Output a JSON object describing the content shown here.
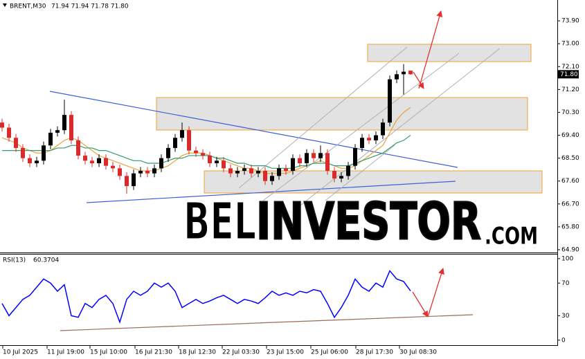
{
  "chart_data": [
    {
      "type": "candlestick",
      "symbol": "BRENT,M30",
      "ohlc_label": "71.94 71.94 71.78 71.80",
      "price_label": {
        "value": 71.8,
        "label": "71.80"
      },
      "up_color": "#000000",
      "down_color": "#d92b2b",
      "open": [
        69.9,
        69.7,
        69.3,
        68.9,
        68.5,
        68.3,
        68.4,
        69.0,
        69.5,
        69.6,
        70.2,
        69.2,
        68.6,
        68.4,
        68.3,
        68.5,
        68.2,
        68.1,
        67.8,
        67.4,
        67.9,
        68.0,
        67.9,
        68.1,
        68.5,
        68.9,
        69.3,
        69.6,
        68.8,
        68.7,
        68.6,
        68.3,
        68.4,
        68.1,
        67.9,
        68.0,
        68.1,
        67.9,
        68.0,
        67.6,
        67.8,
        68.1,
        68.0,
        68.5,
        68.3,
        68.7,
        68.5,
        68.7,
        68.0,
        67.7,
        67.8,
        68.2,
        68.9,
        69.3,
        69.2,
        69.4,
        69.9,
        71.6,
        71.8,
        71.94
      ],
      "high": [
        70.05,
        69.85,
        69.45,
        69.05,
        68.65,
        68.55,
        69.15,
        69.65,
        69.75,
        70.8,
        70.35,
        69.35,
        68.75,
        68.55,
        68.65,
        68.65,
        68.35,
        68.25,
        67.95,
        68.05,
        68.15,
        68.15,
        68.25,
        68.65,
        69.05,
        69.45,
        69.9,
        69.75,
        68.95,
        68.85,
        68.75,
        68.55,
        68.55,
        68.25,
        68.15,
        68.25,
        68.25,
        68.15,
        68.15,
        67.95,
        68.25,
        68.25,
        68.65,
        68.65,
        68.85,
        68.85,
        69.0,
        68.85,
        68.15,
        67.95,
        68.35,
        69.05,
        69.45,
        69.45,
        69.55,
        70.05,
        71.75,
        71.95,
        72.2,
        71.94
      ],
      "low": [
        69.55,
        69.15,
        68.75,
        68.35,
        68.15,
        68.15,
        68.25,
        68.85,
        69.35,
        69.45,
        69.05,
        68.45,
        68.25,
        68.15,
        68.15,
        68.05,
        67.95,
        67.65,
        67.1,
        67.25,
        67.75,
        67.75,
        67.75,
        67.95,
        68.35,
        68.75,
        69.15,
        68.65,
        68.55,
        68.45,
        68.15,
        68.15,
        67.95,
        67.75,
        67.75,
        67.85,
        67.75,
        67.75,
        67.45,
        67.45,
        67.65,
        67.85,
        67.85,
        68.15,
        68.15,
        68.35,
        68.35,
        67.85,
        67.55,
        67.55,
        67.65,
        68.05,
        68.75,
        69.05,
        69.05,
        69.25,
        69.75,
        71.45,
        71.0,
        71.78
      ],
      "close": [
        69.7,
        69.3,
        68.9,
        68.5,
        68.3,
        68.4,
        69.0,
        69.5,
        69.6,
        70.2,
        69.2,
        68.6,
        68.4,
        68.3,
        68.5,
        68.2,
        68.1,
        67.8,
        67.4,
        67.9,
        68.0,
        67.9,
        68.1,
        68.5,
        68.9,
        69.3,
        69.6,
        68.8,
        68.7,
        68.6,
        68.3,
        68.4,
        68.1,
        67.9,
        68.0,
        68.1,
        67.9,
        68.0,
        67.6,
        67.8,
        68.1,
        68.0,
        68.5,
        68.3,
        68.7,
        68.5,
        68.7,
        68.0,
        67.7,
        67.8,
        68.2,
        68.9,
        69.3,
        69.2,
        69.4,
        69.9,
        71.6,
        71.8,
        71.9,
        71.8
      ],
      "series": [
        {
          "color": "#e8a33a",
          "values": [
            69.3,
            69.2,
            69.1,
            68.9,
            68.8,
            68.7,
            68.7,
            68.8,
            69.0,
            69.2,
            69.3,
            69.2,
            69.0,
            68.8,
            68.6,
            68.5,
            68.4,
            68.3,
            68.2,
            68.1,
            68.0,
            68.0,
            68.0,
            68.1,
            68.2,
            68.4,
            68.6,
            68.7,
            68.7,
            68.7,
            68.6,
            68.5,
            68.4,
            68.3,
            68.2,
            68.1,
            68.1,
            68.0,
            67.9,
            67.9,
            67.9,
            67.9,
            68.0,
            68.1,
            68.2,
            68.3,
            68.4,
            68.3,
            68.2,
            68.1,
            68.1,
            68.2,
            68.4,
            68.6,
            68.8,
            69.0,
            69.5,
            70.0,
            70.3,
            70.5
          ]
        },
        {
          "color": "#2e9e6a",
          "values": [
            68.8,
            68.8,
            68.8,
            68.8,
            68.8,
            68.8,
            68.8,
            68.8,
            68.9,
            68.9,
            69.0,
            69.0,
            68.9,
            68.9,
            68.8,
            68.8,
            68.7,
            68.6,
            68.5,
            68.4,
            68.4,
            68.3,
            68.3,
            68.3,
            68.4,
            68.5,
            68.5,
            68.6,
            68.6,
            68.6,
            68.6,
            68.5,
            68.5,
            68.4,
            68.3,
            68.3,
            68.2,
            68.2,
            68.2,
            68.1,
            68.1,
            68.1,
            68.1,
            68.2,
            68.2,
            68.3,
            68.3,
            68.3,
            68.2,
            68.2,
            68.2,
            68.3,
            68.4,
            68.5,
            68.6,
            68.7,
            68.9,
            69.1,
            69.2,
            69.4
          ]
        }
      ],
      "xlim": [
        -0.3,
        80.2
      ],
      "xticks": [
        {
          "value": 0.1,
          "label": "10 Jul 2025"
        },
        {
          "value": 6.5,
          "label": "11 Jul 19:00"
        },
        {
          "value": 12.7,
          "label": "15 Jul 10:00"
        },
        {
          "value": 19.2,
          "label": "16 Jul 21:30"
        },
        {
          "value": 25.5,
          "label": "18 Jul 12:30"
        },
        {
          "value": 31.8,
          "label": "22 Jul 03:30"
        },
        {
          "value": 38.2,
          "label": "23 Jul 15:00"
        },
        {
          "value": 44.6,
          "label": "25 Jul 06:00"
        },
        {
          "value": 51.1,
          "label": "28 Jul 17:30"
        },
        {
          "value": 57.4,
          "label": "30 Jul 08:30"
        }
      ],
      "ylim": [
        64.79,
        74.72
      ],
      "yticks": [
        {
          "value": 64.9,
          "label": "64.90"
        },
        {
          "value": 65.8,
          "label": "65.80"
        },
        {
          "value": 66.7,
          "label": "66.70"
        },
        {
          "value": 67.6,
          "label": "67.60"
        },
        {
          "value": 68.5,
          "label": "68.50"
        },
        {
          "value": 69.4,
          "label": "69.40"
        },
        {
          "value": 70.3,
          "label": "70.30"
        },
        {
          "value": 71.2,
          "label": "71.20"
        },
        {
          "value": 72.1,
          "label": "72.10"
        },
        {
          "value": 73.0,
          "label": "73.00"
        },
        {
          "value": 73.9,
          "label": "73.90"
        }
      ]
    },
    {
      "type": "line",
      "name": "RSI(13)",
      "color": "#0000ff",
      "values": [
        45,
        30,
        40,
        50,
        55,
        65,
        75,
        70,
        60,
        68,
        30,
        28,
        45,
        40,
        50,
        55,
        45,
        22,
        50,
        60,
        55,
        60,
        70,
        65,
        70,
        60,
        40,
        45,
        50,
        45,
        48,
        52,
        55,
        50,
        45,
        50,
        48,
        45,
        52,
        60,
        55,
        58,
        55,
        60,
        58,
        62,
        60,
        45,
        28,
        40,
        55,
        75,
        65,
        60,
        70,
        65,
        85,
        75,
        72,
        60.3704
      ],
      "ylim": [
        -7,
        105
      ],
      "yticks": [
        0,
        30,
        70,
        100
      ]
    }
  ],
  "watermark": {
    "left": "BEL",
    "middle": "INVESTOR",
    "right": ".COM"
  }
}
